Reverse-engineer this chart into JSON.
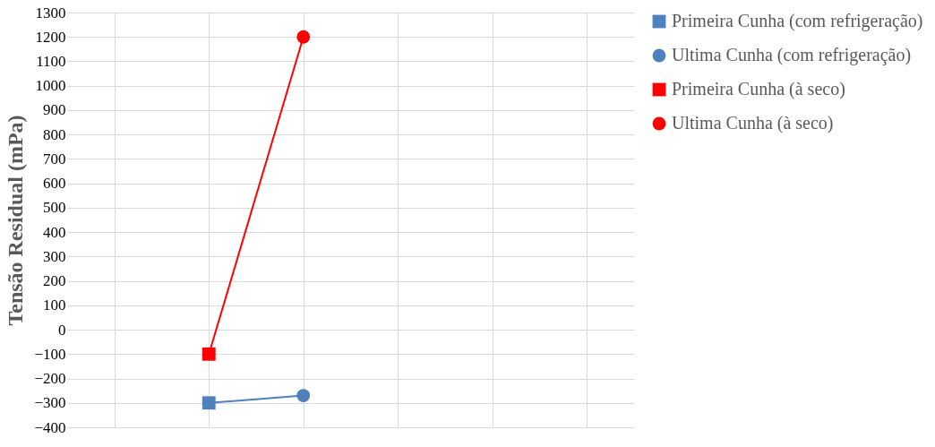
{
  "chart_data": {
    "type": "scatter",
    "ylabel": "Tensão Residual (mPa)",
    "categories": [
      null,
      null,
      null,
      null,
      null,
      null
    ],
    "ylim": [
      -400,
      1300
    ],
    "yticks": [
      -400,
      -300,
      -200,
      -100,
      0,
      100,
      200,
      300,
      400,
      500,
      600,
      700,
      800,
      900,
      1000,
      1100,
      1200,
      1300
    ],
    "grid": true,
    "legend": "right",
    "tick_labels": "y",
    "series": [
      {
        "type": "line",
        "color": "#4f81bd",
        "values": [
          null,
          -300,
          -270,
          null,
          null,
          null
        ],
        "marker": "none"
      },
      {
        "type": "line",
        "color": "#ff0000",
        "values": [
          null,
          -100,
          1200,
          null,
          null,
          null
        ],
        "marker": "none"
      },
      {
        "name": "Primeira Cunha (com refrigeração)",
        "color": "#4f81bd",
        "values": [
          null,
          -300,
          null,
          null,
          null,
          null
        ],
        "marker": "square"
      },
      {
        "name": "Ultima Cunha (com refrigeração)",
        "color": "#4f81bd",
        "values": [
          null,
          null,
          -270,
          null,
          null,
          null
        ],
        "marker": "circle"
      },
      {
        "name": "Primeira Cunha (à seco)",
        "color": "#ff0000",
        "values": [
          null,
          -100,
          null,
          null,
          null,
          null
        ],
        "marker": "square"
      },
      {
        "name": "Ultima Cunha (à seco)",
        "color": "#ff0000",
        "values": [
          null,
          null,
          1200,
          null,
          null,
          null
        ],
        "marker": "circle"
      }
    ]
  }
}
